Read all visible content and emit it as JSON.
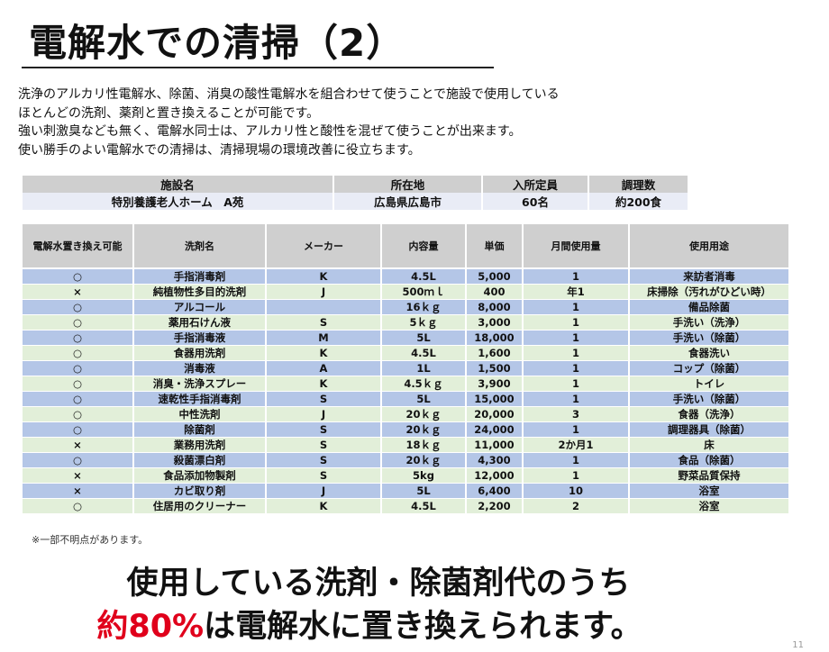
{
  "title": "電解水での清掃（2）",
  "intro": [
    "洗浄のアルカリ性電解水、除菌、消臭の酸性電解水を組合わせて使うことで施設で使用している",
    "ほとんどの洗剤、薬剤と置き換えることが可能です。",
    "強い刺激臭なども無く、電解水同士は、アルカリ性と酸性を混ぜて使うことが出来ます。",
    "使い勝手のよい電解水での清掃は、清掃現場の環境改善に役立ちます。"
  ],
  "facility": {
    "headers": [
      "施設名",
      "所在地",
      "入所定員",
      "調理数"
    ],
    "values": [
      "特別養護老人ホーム　A苑",
      "広島県広島市",
      "60名",
      "約200食"
    ]
  },
  "table": {
    "headers": [
      "電解水置き換え可能",
      "洗剤名",
      "メーカー",
      "内容量",
      "単価",
      "月間使用量",
      "使用用途"
    ],
    "rows": [
      [
        "○",
        "手指消毒剤",
        "K",
        "4.5L",
        "5,000",
        "1",
        "来訪者消毒"
      ],
      [
        "×",
        "純植物性多目的洗剤",
        "J",
        "500ｍｌ",
        "400",
        "年1",
        "床掃除（汚れがひどい時）"
      ],
      [
        "○",
        "アルコール",
        "",
        "16ｋｇ",
        "8,000",
        "1",
        "備品除菌"
      ],
      [
        "○",
        "薬用石けん液",
        "S",
        "5ｋｇ",
        "3,000",
        "1",
        "手洗い（洗浄）"
      ],
      [
        "○",
        "手指消毒液",
        "M",
        "5L",
        "18,000",
        "1",
        "手洗い（除菌）"
      ],
      [
        "○",
        "食器用洗剤",
        "K",
        "4.5L",
        "1,600",
        "1",
        "食器洗い"
      ],
      [
        "○",
        "消毒液",
        "A",
        "1L",
        "1,500",
        "1",
        "コップ（除菌）"
      ],
      [
        "○",
        "消臭・洗浄スプレー",
        "K",
        "4.5ｋｇ",
        "3,900",
        "1",
        "トイレ"
      ],
      [
        "○",
        "速乾性手指消毒剤",
        "S",
        "5L",
        "15,000",
        "1",
        "手洗い（除菌）"
      ],
      [
        "○",
        "中性洗剤",
        "J",
        "20ｋｇ",
        "20,000",
        "3",
        "食器（洗浄）"
      ],
      [
        "○",
        "除菌剤",
        "S",
        "20ｋｇ",
        "24,000",
        "1",
        "調理器具（除菌）"
      ],
      [
        "×",
        "業務用洗剤",
        "S",
        "18ｋｇ",
        "11,000",
        "2か月1",
        "床"
      ],
      [
        "○",
        "殺菌漂白剤",
        "S",
        "20ｋｇ",
        "4,300",
        "1",
        "食品（除菌）"
      ],
      [
        "×",
        "食品添加物製剤",
        "S",
        "5kg",
        "12,000",
        "1",
        "野菜品質保持"
      ],
      [
        "×",
        "カビ取り剤",
        "J",
        "5L",
        "6,400",
        "10",
        "浴室"
      ],
      [
        "○",
        "住居用のクリーナー",
        "K",
        "4.5L",
        "2,200",
        "2",
        "浴室"
      ]
    ]
  },
  "footnote": "※一部不明点があります。",
  "conclusion": {
    "line1": "使用している洗剤・除菌剤代のうち",
    "line2_highlight": "約80%",
    "line2_rest": "は電解水に置き換えられます。"
  },
  "page_number": "11",
  "colors": {
    "row_blue": "#b4c6e7",
    "row_green": "#e2efd9",
    "header_gray": "#cfcfcf",
    "highlight_red": "#e0001b"
  }
}
